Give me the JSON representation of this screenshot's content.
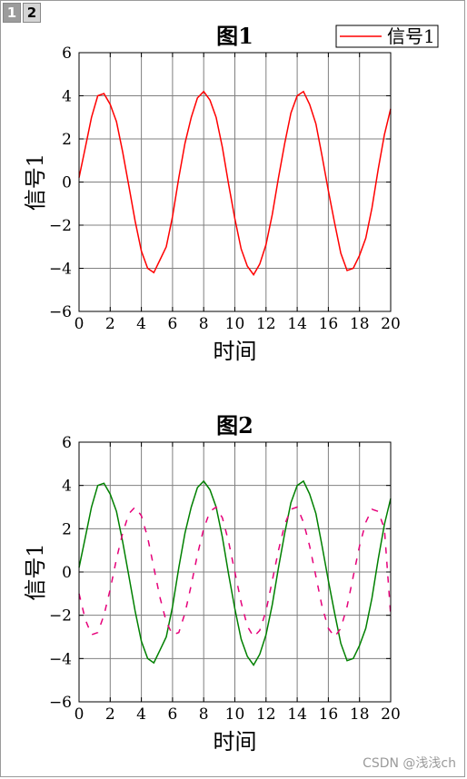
{
  "tabs": [
    {
      "label": "1",
      "active": false
    },
    {
      "label": "2",
      "active": true
    }
  ],
  "watermark": "CSDN @浅浅ch",
  "chart_data": [
    {
      "type": "line",
      "title": "图1",
      "xlabel": "时间",
      "ylabel": "信号1",
      "xlim": [
        0,
        20
      ],
      "ylim": [
        -6,
        6
      ],
      "xticks": [
        0,
        2,
        4,
        6,
        8,
        10,
        12,
        14,
        16,
        18,
        20
      ],
      "yticks": [
        -6,
        -4,
        -2,
        0,
        2,
        4,
        6
      ],
      "grid": true,
      "legend": {
        "position": "top-right",
        "entries": [
          "信号1"
        ]
      },
      "series": [
        {
          "name": "信号1",
          "color": "#ff0000",
          "style": "solid",
          "x": [
            0,
            0.4,
            0.8,
            1.2,
            1.6,
            2.0,
            2.4,
            2.8,
            3.2,
            3.6,
            4.0,
            4.4,
            4.8,
            5.2,
            5.6,
            6.0,
            6.4,
            6.8,
            7.2,
            7.6,
            8.0,
            8.4,
            8.8,
            9.2,
            9.6,
            10.0,
            10.4,
            10.8,
            11.2,
            11.6,
            12.0,
            12.4,
            12.8,
            13.2,
            13.6,
            14.0,
            14.4,
            14.8,
            15.2,
            15.6,
            16.0,
            16.4,
            16.8,
            17.2,
            17.6,
            18.0,
            18.4,
            18.8,
            19.2,
            19.6,
            20.0
          ],
          "y": [
            0.2,
            1.6,
            3.0,
            4.0,
            4.1,
            3.6,
            2.8,
            1.4,
            -0.2,
            -1.8,
            -3.2,
            -4.0,
            -4.2,
            -3.6,
            -3.0,
            -1.6,
            0.2,
            1.8,
            3.0,
            3.9,
            4.2,
            3.8,
            3.0,
            1.6,
            -0.1,
            -1.7,
            -3.1,
            -3.9,
            -4.3,
            -3.8,
            -2.9,
            -1.5,
            0.2,
            1.8,
            3.2,
            4.0,
            4.2,
            3.6,
            2.7,
            1.2,
            -0.4,
            -1.9,
            -3.3,
            -4.1,
            -4.0,
            -3.4,
            -2.6,
            -1.2,
            0.6,
            2.2,
            3.4
          ]
        }
      ]
    },
    {
      "type": "line",
      "title": "图2",
      "xlabel": "时间",
      "ylabel": "信号1",
      "xlim": [
        0,
        20
      ],
      "ylim": [
        -6,
        6
      ],
      "xticks": [
        0,
        2,
        4,
        6,
        8,
        10,
        12,
        14,
        16,
        18,
        20
      ],
      "yticks": [
        -6,
        -4,
        -2,
        0,
        2,
        4,
        6
      ],
      "grid": true,
      "series": [
        {
          "color": "#008000",
          "style": "solid",
          "x": [
            0,
            0.4,
            0.8,
            1.2,
            1.6,
            2.0,
            2.4,
            2.8,
            3.2,
            3.6,
            4.0,
            4.4,
            4.8,
            5.2,
            5.6,
            6.0,
            6.4,
            6.8,
            7.2,
            7.6,
            8.0,
            8.4,
            8.8,
            9.2,
            9.6,
            10.0,
            10.4,
            10.8,
            11.2,
            11.6,
            12.0,
            12.4,
            12.8,
            13.2,
            13.6,
            14.0,
            14.4,
            14.8,
            15.2,
            15.6,
            16.0,
            16.4,
            16.8,
            17.2,
            17.6,
            18.0,
            18.4,
            18.8,
            19.2,
            19.6,
            20.0
          ],
          "y": [
            0.2,
            1.6,
            3.0,
            4.0,
            4.1,
            3.6,
            2.8,
            1.4,
            -0.2,
            -1.8,
            -3.2,
            -4.0,
            -4.2,
            -3.6,
            -3.0,
            -1.6,
            0.2,
            1.8,
            3.0,
            3.9,
            4.2,
            3.8,
            3.0,
            1.6,
            -0.1,
            -1.7,
            -3.1,
            -3.9,
            -4.3,
            -3.8,
            -2.9,
            -1.5,
            0.2,
            1.8,
            3.2,
            4.0,
            4.2,
            3.6,
            2.7,
            1.2,
            -0.4,
            -1.9,
            -3.3,
            -4.1,
            -4.0,
            -3.4,
            -2.6,
            -1.2,
            0.6,
            2.2,
            3.4
          ]
        },
        {
          "color": "#e6007a",
          "style": "dashed",
          "x": [
            0,
            0.4,
            0.8,
            1.2,
            1.6,
            2.0,
            2.4,
            2.8,
            3.2,
            3.6,
            4.0,
            4.4,
            4.8,
            5.2,
            5.6,
            6.0,
            6.4,
            6.8,
            7.2,
            7.6,
            8.0,
            8.4,
            8.8,
            9.2,
            9.6,
            10.0,
            10.4,
            10.8,
            11.2,
            11.6,
            12.0,
            12.4,
            12.8,
            13.2,
            13.6,
            14.0,
            14.4,
            14.8,
            15.2,
            15.6,
            16.0,
            16.4,
            16.8,
            17.2,
            17.6,
            18.0,
            18.4,
            18.8,
            19.2,
            19.6,
            20.0
          ],
          "y": [
            -1.0,
            -2.2,
            -2.9,
            -2.8,
            -2.0,
            -0.8,
            0.6,
            1.8,
            2.7,
            3.0,
            2.6,
            1.6,
            0.2,
            -1.2,
            -2.3,
            -2.9,
            -2.8,
            -1.9,
            -0.6,
            0.8,
            2.0,
            2.8,
            3.0,
            2.5,
            1.4,
            0.0,
            -1.4,
            -2.5,
            -3.0,
            -2.7,
            -1.8,
            -0.4,
            1.0,
            2.2,
            2.9,
            3.0,
            2.3,
            1.2,
            -0.2,
            -1.6,
            -2.6,
            -3.0,
            -2.6,
            -1.6,
            -0.2,
            1.2,
            2.3,
            2.9,
            2.8,
            2.0,
            -2.0
          ]
        }
      ]
    }
  ]
}
